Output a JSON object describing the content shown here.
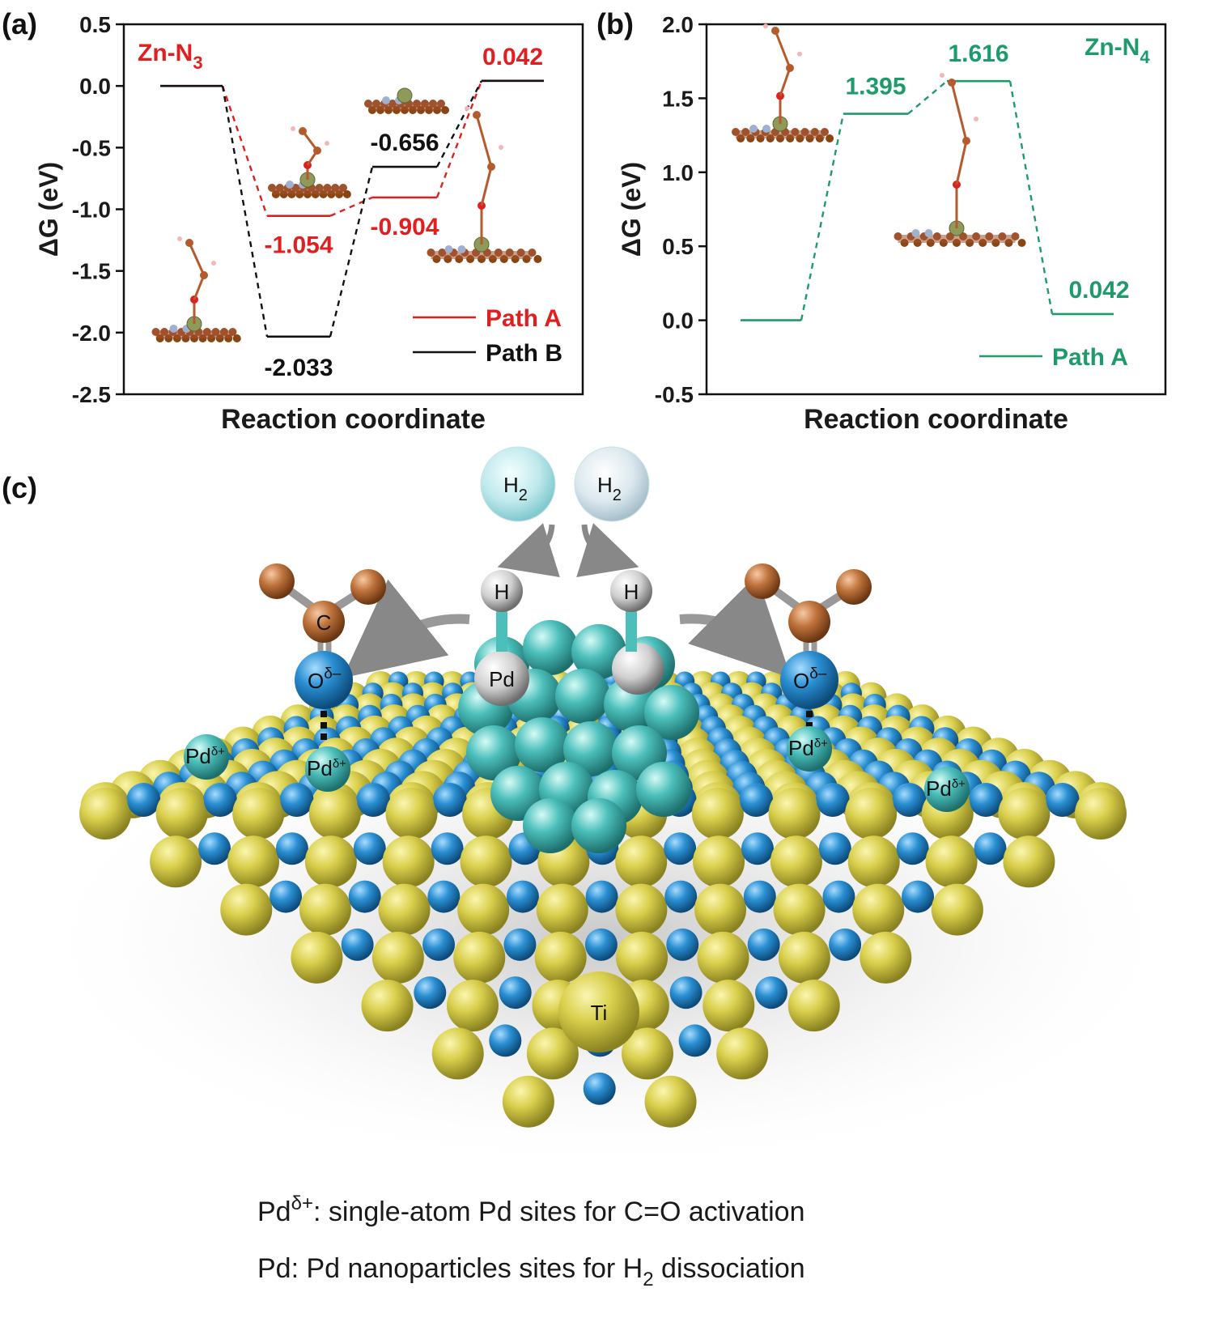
{
  "panels": {
    "a": "(a)",
    "b": "(b)",
    "c": "(c)"
  },
  "chart_data": [
    {
      "type": "line",
      "panel": "a",
      "title_main": "Zn-N",
      "title_sub": "3",
      "xlabel": "Reaction coordinate",
      "ylabel": "ΔG (eV)",
      "ylim": [
        -2.5,
        0.5
      ],
      "yticks": [
        "0.5",
        "0.0",
        "-0.5",
        "-1.0",
        "-1.5",
        "-2.0",
        "-2.5"
      ],
      "ytick_values": [
        0.5,
        0.0,
        -0.5,
        -1.0,
        -1.5,
        -2.0,
        -2.5
      ],
      "legend_position": "bottom-right",
      "series": [
        {
          "name": "Path A",
          "color": "#e02020",
          "levels": [
            0.0,
            -1.054,
            -0.904,
            0.042
          ],
          "labels": [
            "",
            "-1.054",
            "-0.904",
            "0.042"
          ]
        },
        {
          "name": "Path B",
          "color": "#111111",
          "levels": [
            0.0,
            -2.033,
            -0.656,
            0.042
          ],
          "labels": [
            "",
            "-2.033",
            "-0.656",
            ""
          ]
        }
      ]
    },
    {
      "type": "line",
      "panel": "b",
      "title_main": "Zn-N",
      "title_sub": "4",
      "xlabel": "Reaction coordinate",
      "ylabel": "ΔG (eV)",
      "ylim": [
        -0.5,
        2.0
      ],
      "yticks": [
        "2.0",
        "1.5",
        "1.0",
        "0.5",
        "0.0",
        "-0.5"
      ],
      "ytick_values": [
        2.0,
        1.5,
        1.0,
        0.5,
        0.0,
        -0.5
      ],
      "legend_position": "bottom-right",
      "series": [
        {
          "name": "Path A",
          "color": "#1f9a6a",
          "levels": [
            0.0,
            1.395,
            1.616,
            0.042
          ],
          "labels": [
            "",
            "1.395",
            "1.616",
            "0.042"
          ]
        }
      ]
    }
  ],
  "illustration": {
    "h2_a": "H",
    "h2_b": "H",
    "h2_sub": "2",
    "h_left": "H",
    "h_right": "H",
    "c_atom": "C",
    "o_atom": "O",
    "o_sup": "δ–",
    "pd_np": "Pd",
    "pd_single": "Pd",
    "pd_sup": "δ+",
    "ti": "Ti"
  },
  "caption": {
    "line1_pd": "Pd",
    "line1_sup": "δ+",
    "line1_rest": ": single-atom Pd sites for C=O activation",
    "line2_main": "Pd: Pd nanoparticles sites for H",
    "line2_sub": "2",
    "line2_end": " dissociation"
  },
  "colors": {
    "ti": "#d8cf4a",
    "o_blue": "#1f86c9",
    "pd": "#4cc0bd",
    "c_brown": "#b86a3a"
  }
}
